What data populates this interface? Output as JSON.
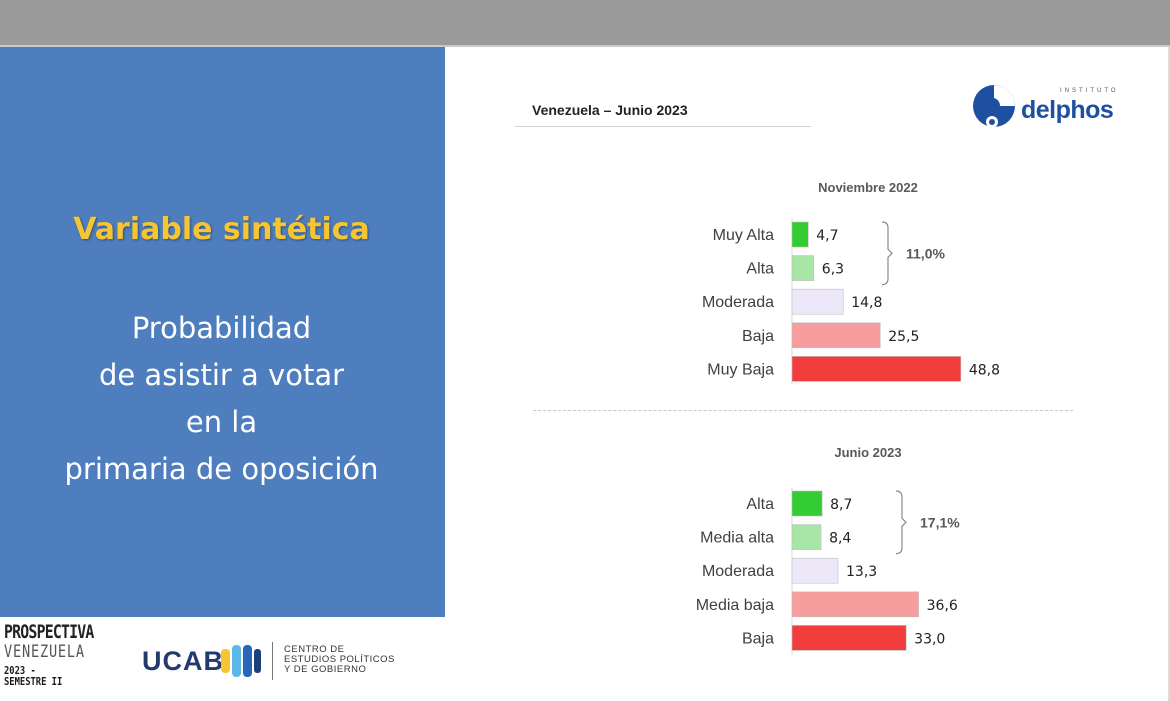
{
  "slide": {
    "heading": "Variable sintética",
    "text_lines": [
      "Probabilidad",
      "de asistir a votar",
      "en la",
      "primaria de oposición"
    ],
    "page_title": "Venezuela  –  Junio 2023"
  },
  "logos": {
    "delphos_small": "INSTITUTO",
    "delphos_word": "delphos",
    "prospectiva_1": "PROSPECTIVA",
    "prospectiva_2": "VENEZUELA",
    "prospectiva_3": "2023 - SEMESTRE II",
    "ucab": "UCAB",
    "cepg_lines": [
      "CENTRO DE",
      "ESTUDIOS POLÍTICOS",
      "Y DE GOBIERNO"
    ]
  },
  "colors": {
    "panel_blue": "#4f7ebe",
    "heading_yellow": "#f7c531",
    "muy_alta_green": "#33cc33",
    "alta_light_green": "#a8e6a8",
    "moderada_lavender": "#ede8f7",
    "baja_pink": "#f79d9d",
    "muy_baja_red": "#f23d3d"
  },
  "chart_data": [
    {
      "type": "bar",
      "orientation": "horizontal",
      "title": "Noviembre 2022",
      "categories": [
        "Muy Alta",
        "Alta",
        "Moderada",
        "Baja",
        "Muy Baja"
      ],
      "values": [
        4.7,
        6.3,
        14.8,
        25.5,
        48.8
      ],
      "value_labels": [
        "4,7",
        "6,3",
        "14,8",
        "25,5",
        "48,8"
      ],
      "colors": [
        "#33cc33",
        "#a8e6a8",
        "#ede8f7",
        "#f79d9d",
        "#f23d3d"
      ],
      "bracket": {
        "categories": [
          "Muy Alta",
          "Alta"
        ],
        "label": "11,0%"
      },
      "grid": false
    },
    {
      "type": "bar",
      "orientation": "horizontal",
      "title": "Junio 2023",
      "categories": [
        "Alta",
        "Media alta",
        "Moderada",
        "Media baja",
        "Baja"
      ],
      "values": [
        8.7,
        8.4,
        13.3,
        36.6,
        33.0
      ],
      "value_labels": [
        "8,7",
        "8,4",
        "13,3",
        "36,6",
        "33,0"
      ],
      "colors": [
        "#33cc33",
        "#a8e6a8",
        "#ede8f7",
        "#f79d9d",
        "#f23d3d"
      ],
      "bracket": {
        "categories": [
          "Alta",
          "Media alta"
        ],
        "label": "17,1%"
      },
      "grid": false
    }
  ]
}
